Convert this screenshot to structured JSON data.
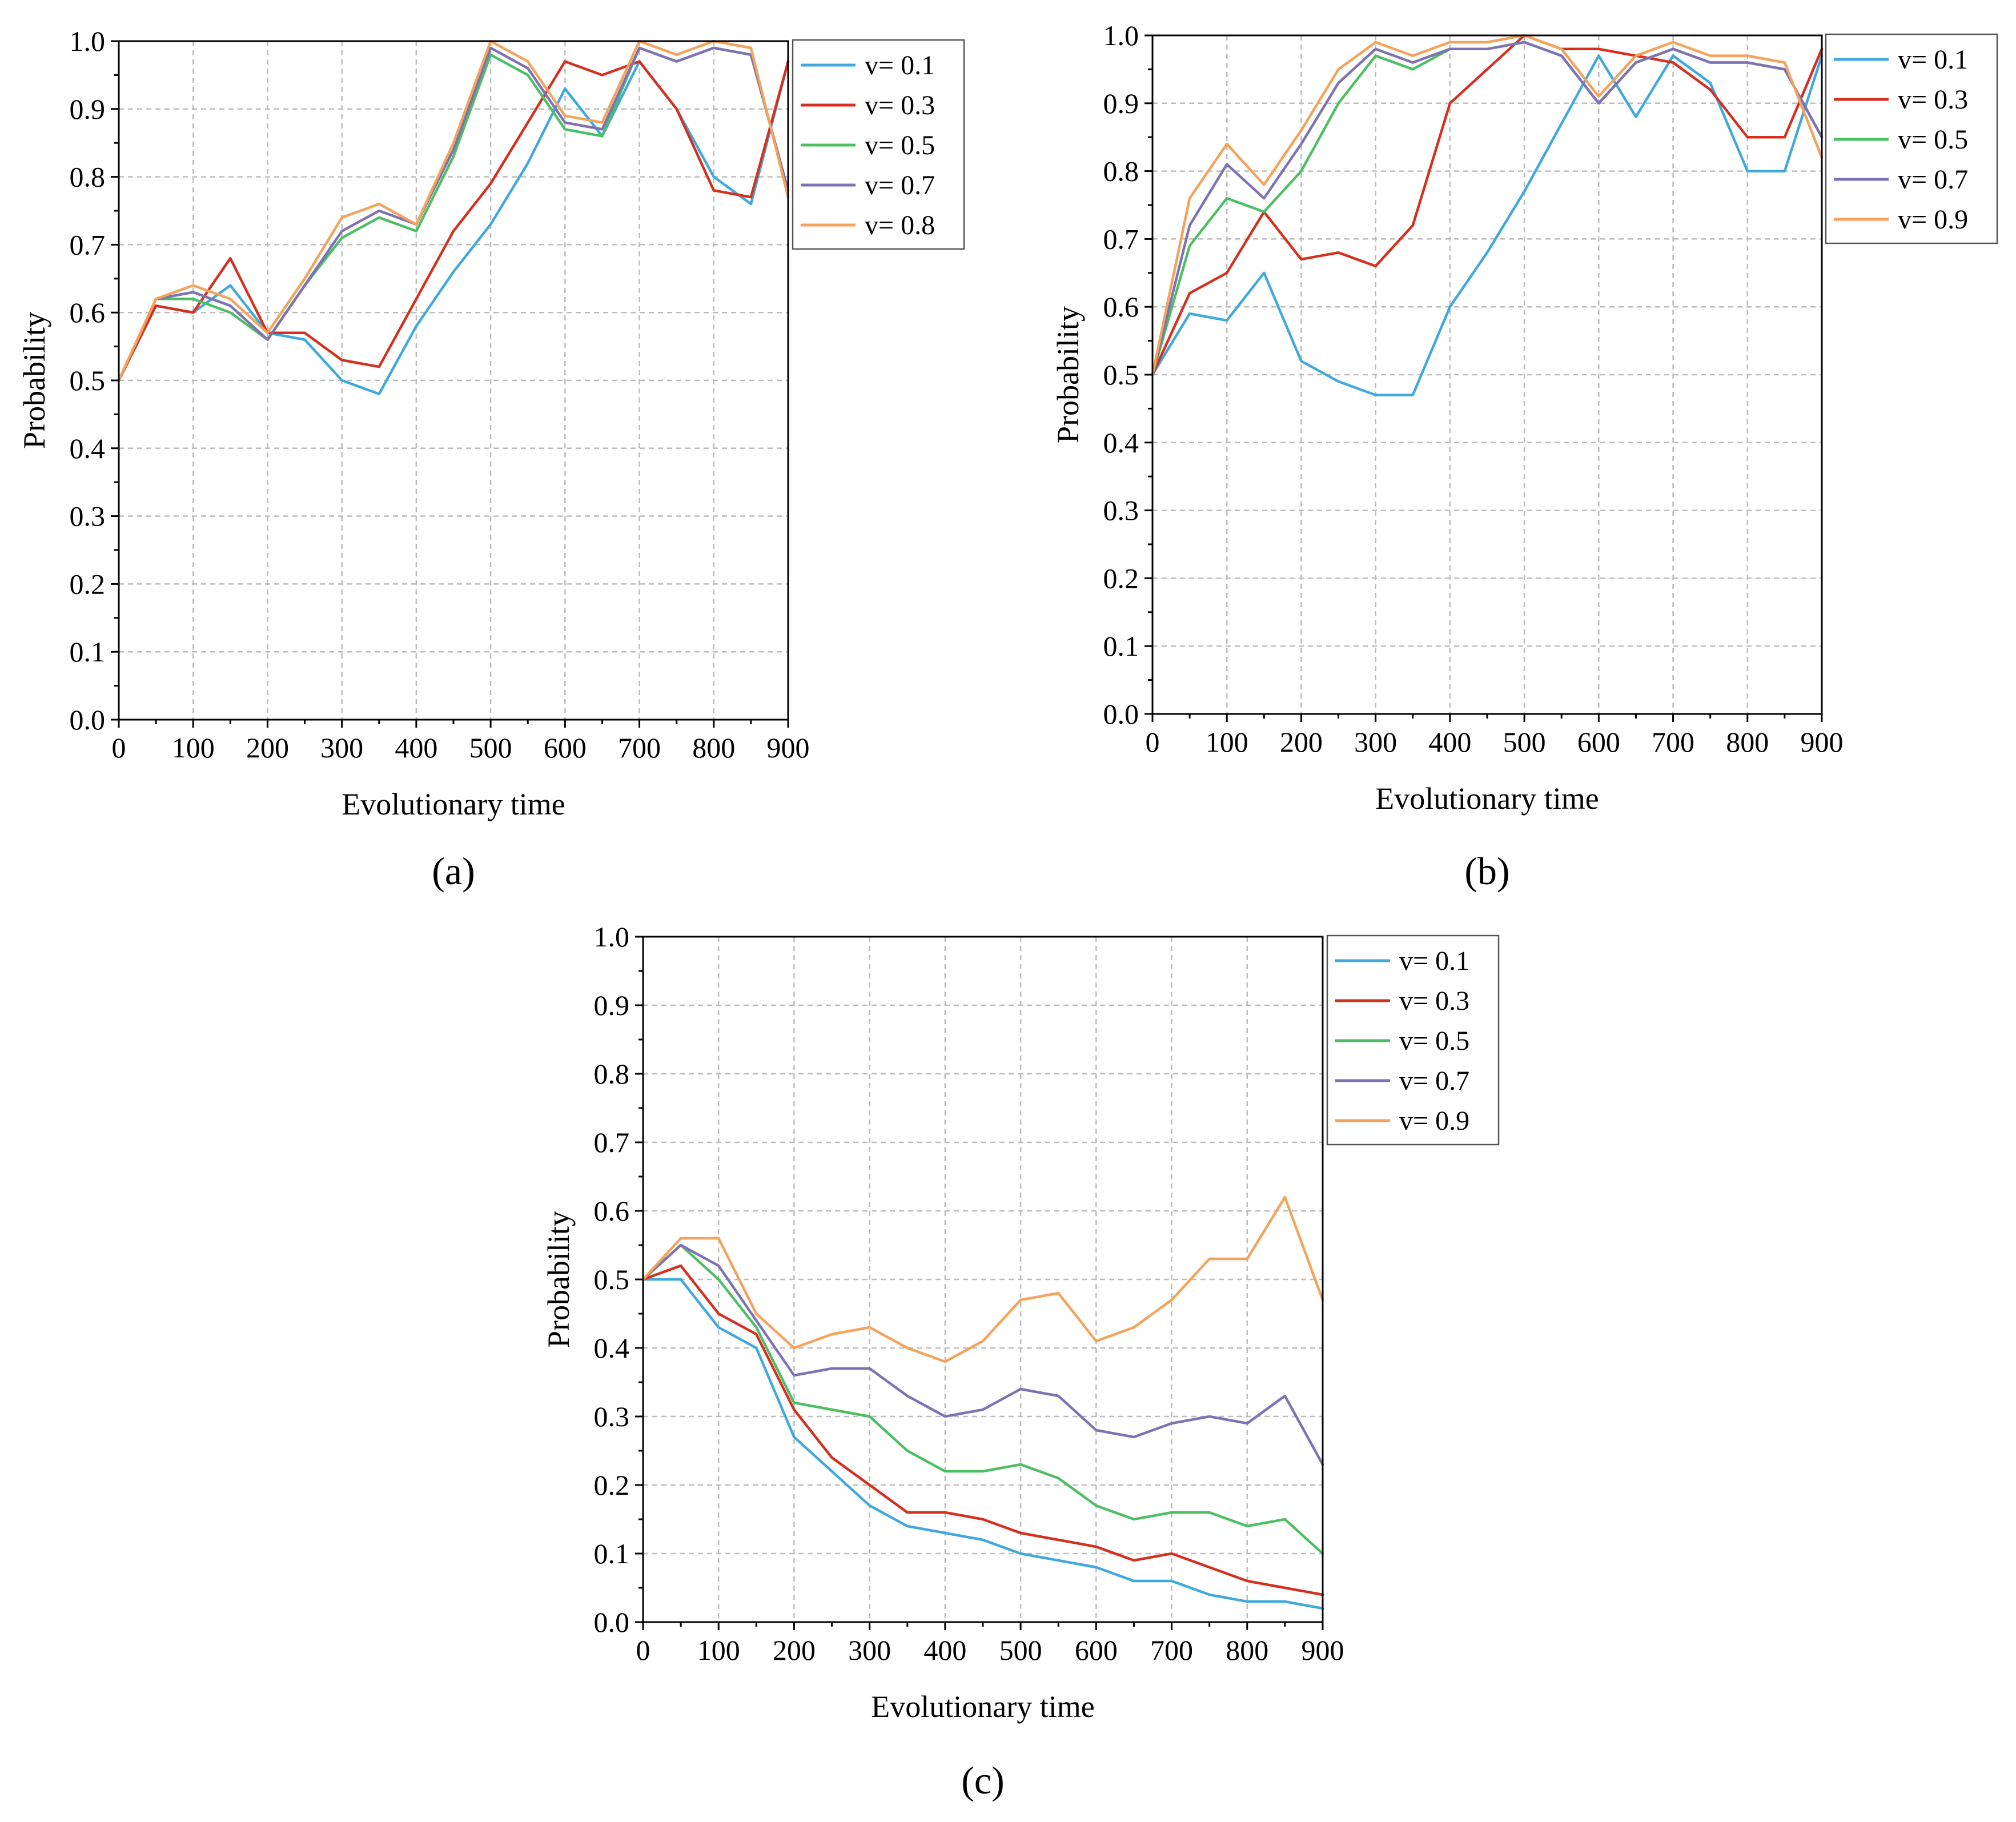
{
  "chart_data": [
    {
      "type": "line",
      "panel_label": "(a)",
      "panel_letter": "a",
      "xlabel": "Evolutionary time",
      "ylabel": "Probability",
      "xlim": [
        0,
        900
      ],
      "ylim": [
        0.0,
        1.0
      ],
      "xticks": [
        "0",
        "100",
        "200",
        "300",
        "400",
        "500",
        "600",
        "700",
        "800",
        "900"
      ],
      "yticks": [
        "0.0",
        "0.1",
        "0.2",
        "0.3",
        "0.4",
        "0.5",
        "0.6",
        "0.7",
        "0.8",
        "0.9",
        "1.0"
      ],
      "grid": true,
      "legend_position": "outside-right",
      "x": [
        0,
        50,
        100,
        150,
        200,
        250,
        300,
        350,
        400,
        450,
        500,
        550,
        600,
        650,
        700,
        750,
        800,
        850,
        900
      ],
      "series": [
        {
          "name": "v= 0.1",
          "value": "0.1",
          "color": "#3fa9df",
          "values": [
            0.5,
            0.61,
            0.6,
            0.64,
            0.57,
            0.56,
            0.5,
            0.48,
            0.58,
            0.66,
            0.73,
            0.82,
            0.93,
            0.86,
            0.97,
            0.9,
            0.8,
            0.76,
            0.97
          ]
        },
        {
          "name": "v= 0.3",
          "value": "0.3",
          "color": "#d62f1e",
          "values": [
            0.5,
            0.61,
            0.6,
            0.68,
            0.57,
            0.57,
            0.53,
            0.52,
            0.62,
            0.72,
            0.79,
            0.88,
            0.97,
            0.95,
            0.97,
            0.9,
            0.78,
            0.77,
            0.97
          ]
        },
        {
          "name": "v= 0.5",
          "value": "0.5",
          "color": "#4cbf63",
          "values": [
            0.5,
            0.62,
            0.62,
            0.6,
            0.56,
            0.64,
            0.71,
            0.74,
            0.72,
            0.83,
            0.98,
            0.95,
            0.87,
            0.86,
            0.99,
            0.97,
            0.99,
            0.98,
            0.78
          ]
        },
        {
          "name": "v= 0.7",
          "value": "0.7",
          "color": "#7d72b3",
          "values": [
            0.5,
            0.62,
            0.63,
            0.61,
            0.56,
            0.64,
            0.72,
            0.75,
            0.73,
            0.84,
            0.99,
            0.96,
            0.88,
            0.87,
            0.99,
            0.97,
            0.99,
            0.98,
            0.78
          ]
        },
        {
          "name": "v= 0.8",
          "value": "0.8",
          "color": "#f5a25a",
          "values": [
            0.5,
            0.62,
            0.64,
            0.62,
            0.57,
            0.65,
            0.74,
            0.76,
            0.73,
            0.85,
            1.0,
            0.97,
            0.89,
            0.88,
            1.0,
            0.98,
            1.0,
            0.99,
            0.77
          ]
        }
      ]
    },
    {
      "type": "line",
      "panel_label": "(b)",
      "panel_letter": "b",
      "xlabel": "Evolutionary time",
      "ylabel": "Probability",
      "xlim": [
        0,
        900
      ],
      "ylim": [
        0.0,
        1.0
      ],
      "xticks": [
        "0",
        "100",
        "200",
        "300",
        "400",
        "500",
        "600",
        "700",
        "800",
        "900"
      ],
      "yticks": [
        "0.0",
        "0.1",
        "0.2",
        "0.3",
        "0.4",
        "0.5",
        "0.6",
        "0.7",
        "0.8",
        "0.9",
        "1.0"
      ],
      "grid": true,
      "legend_position": "outside-right",
      "x": [
        0,
        50,
        100,
        150,
        200,
        250,
        300,
        350,
        400,
        450,
        500,
        550,
        600,
        650,
        700,
        750,
        800,
        850,
        900
      ],
      "series": [
        {
          "name": "v= 0.1",
          "value": "0.1",
          "color": "#3fa9df",
          "values": [
            0.5,
            0.59,
            0.58,
            0.65,
            0.52,
            0.49,
            0.47,
            0.47,
            0.6,
            0.68,
            0.77,
            0.87,
            0.97,
            0.88,
            0.97,
            0.93,
            0.8,
            0.8,
            0.97
          ]
        },
        {
          "name": "v= 0.3",
          "value": "0.3",
          "color": "#d62f1e",
          "values": [
            0.5,
            0.62,
            0.65,
            0.74,
            0.67,
            0.68,
            0.66,
            0.72,
            0.9,
            0.95,
            1.0,
            0.98,
            0.98,
            0.97,
            0.96,
            0.92,
            0.85,
            0.85,
            0.98
          ]
        },
        {
          "name": "v= 0.5",
          "value": "0.5",
          "color": "#4cbf63",
          "values": [
            0.5,
            0.69,
            0.76,
            0.74,
            0.8,
            0.9,
            0.97,
            0.95,
            0.98,
            0.98,
            0.99,
            0.97,
            0.9,
            0.96,
            0.98,
            0.96,
            0.96,
            0.95,
            0.85
          ]
        },
        {
          "name": "v= 0.7",
          "value": "0.7",
          "color": "#7d72b3",
          "values": [
            0.5,
            0.72,
            0.81,
            0.76,
            0.84,
            0.93,
            0.98,
            0.96,
            0.98,
            0.98,
            0.99,
            0.97,
            0.9,
            0.96,
            0.98,
            0.96,
            0.96,
            0.95,
            0.85
          ]
        },
        {
          "name": "v= 0.9",
          "value": "0.9",
          "color": "#f5a25a",
          "values": [
            0.5,
            0.76,
            0.84,
            0.78,
            0.86,
            0.95,
            0.99,
            0.97,
            0.99,
            0.99,
            1.0,
            0.98,
            0.91,
            0.97,
            0.99,
            0.97,
            0.97,
            0.96,
            0.82
          ]
        }
      ]
    },
    {
      "type": "line",
      "panel_label": "(c)",
      "panel_letter": "c",
      "xlabel": "Evolutionary time",
      "ylabel": "Probability",
      "xlim": [
        0,
        900
      ],
      "ylim": [
        0.0,
        1.0
      ],
      "xticks": [
        "0",
        "100",
        "200",
        "300",
        "400",
        "500",
        "600",
        "700",
        "800",
        "900"
      ],
      "yticks": [
        "0.0",
        "0.1",
        "0.2",
        "0.3",
        "0.4",
        "0.5",
        "0.6",
        "0.7",
        "0.8",
        "0.9",
        "1.0"
      ],
      "grid": true,
      "legend_position": "outside-right",
      "x": [
        0,
        50,
        100,
        150,
        200,
        250,
        300,
        350,
        400,
        450,
        500,
        550,
        600,
        650,
        700,
        750,
        800,
        850,
        900
      ],
      "series": [
        {
          "name": "v= 0.1",
          "value": "0.1",
          "color": "#3fa9df",
          "values": [
            0.5,
            0.5,
            0.43,
            0.4,
            0.27,
            0.22,
            0.17,
            0.14,
            0.13,
            0.12,
            0.1,
            0.09,
            0.08,
            0.06,
            0.06,
            0.04,
            0.03,
            0.03,
            0.02
          ]
        },
        {
          "name": "v= 0.3",
          "value": "0.3",
          "color": "#d62f1e",
          "values": [
            0.5,
            0.52,
            0.45,
            0.42,
            0.31,
            0.24,
            0.2,
            0.16,
            0.16,
            0.15,
            0.13,
            0.12,
            0.11,
            0.09,
            0.1,
            0.08,
            0.06,
            0.05,
            0.04
          ]
        },
        {
          "name": "v= 0.5",
          "value": "0.5",
          "color": "#4cbf63",
          "values": [
            0.5,
            0.55,
            0.5,
            0.43,
            0.32,
            0.31,
            0.3,
            0.25,
            0.22,
            0.22,
            0.23,
            0.21,
            0.17,
            0.15,
            0.16,
            0.16,
            0.14,
            0.15,
            0.1
          ]
        },
        {
          "name": "v= 0.7",
          "value": "0.7",
          "color": "#7d72b3",
          "values": [
            0.5,
            0.55,
            0.52,
            0.44,
            0.36,
            0.37,
            0.37,
            0.33,
            0.3,
            0.31,
            0.34,
            0.33,
            0.28,
            0.27,
            0.29,
            0.3,
            0.29,
            0.33,
            0.23
          ]
        },
        {
          "name": "v= 0.9",
          "value": "0.9",
          "color": "#f5a25a",
          "values": [
            0.5,
            0.56,
            0.56,
            0.45,
            0.4,
            0.42,
            0.43,
            0.4,
            0.38,
            0.41,
            0.47,
            0.48,
            0.41,
            0.43,
            0.47,
            0.53,
            0.53,
            0.62,
            0.47
          ]
        }
      ]
    }
  ]
}
